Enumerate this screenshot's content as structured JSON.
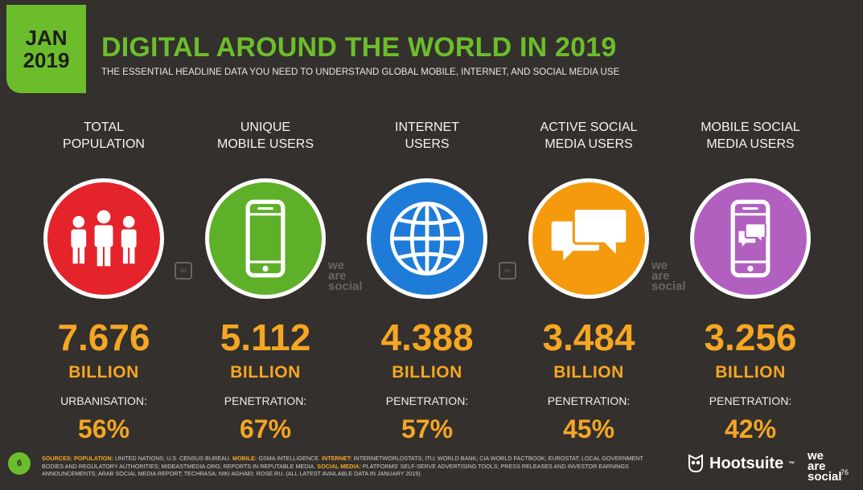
{
  "badge": {
    "month": "JAN",
    "year": "2019"
  },
  "title": "DIGITAL AROUND THE WORLD IN 2019",
  "subtitle": "THE ESSENTIAL HEADLINE DATA YOU NEED TO UNDERSTAND GLOBAL MOBILE, INTERNET, AND SOCIAL MEDIA USE",
  "stats": [
    {
      "label_line1": "TOTAL",
      "label_line2": "POPULATION",
      "icon": "people-icon",
      "color": "#e4242a",
      "value": "7.676",
      "unit": "BILLION",
      "sublabel": "URBANISATION:",
      "subvalue": "56%"
    },
    {
      "label_line1": "UNIQUE",
      "label_line2": "MOBILE USERS",
      "icon": "mobile-phone-icon",
      "color": "#5eb028",
      "value": "5.112",
      "unit": "BILLION",
      "sublabel": "PENETRATION:",
      "subvalue": "67%"
    },
    {
      "label_line1": "INTERNET",
      "label_line2": "USERS",
      "icon": "globe-icon",
      "color": "#1e7bd8",
      "value": "4.388",
      "unit": "BILLION",
      "sublabel": "PENETRATION:",
      "subvalue": "57%"
    },
    {
      "label_line1": "ACTIVE SOCIAL",
      "label_line2": "MEDIA USERS",
      "icon": "chat-bubbles-icon",
      "color": "#f59a0c",
      "value": "3.484",
      "unit": "BILLION",
      "sublabel": "PENETRATION:",
      "subvalue": "45%"
    },
    {
      "label_line1": "MOBILE SOCIAL",
      "label_line2": "MEDIA USERS",
      "icon": "mobile-chat-icon",
      "color": "#b160c0",
      "value": "3.256",
      "unit": "BILLION",
      "sublabel": "PENETRATION:",
      "subvalue": "42%"
    }
  ],
  "accent_colors": {
    "brand_green": "#6cbd2b",
    "value_orange": "#f5a623"
  },
  "watermarks": {
    "we_are_social": [
      "we",
      "are",
      "social"
    ]
  },
  "footer": {
    "page_number": "6",
    "sources_label": "SOURCES:",
    "population_label": "POPULATION:",
    "population_text": "UNITED NATIONS; U.S. CENSUS BUREAU.",
    "mobile_label": "MOBILE:",
    "mobile_text": "GSMA INTELLIGENCE.",
    "internet_label": "INTERNET:",
    "internet_text": "INTERNETWORLDSTATS; ITU; WORLD BANK; CIA WORLD FACTBOOK; EUROSTAT; LOCAL GOVERNMENT BODIES AND REGULATORY AUTHORITIES; MIDEASTMEDIA.ORG; REPORTS IN REPUTABLE MEDIA.",
    "social_label": "SOCIAL MEDIA:",
    "social_text": "PLATFORMS' SELF-SERVE ADVERTISING TOOLS; PRESS RELEASES AND INVESTOR EARNINGS ANNOUNCEMENTS; ARAB SOCIAL MEDIA REPORT; TECHRASA; NIKI AGHAEI; ROSE.RU. (ALL LATEST AVAILABLE DATA IN JANUARY 2019).",
    "hootsuite_label": "Hootsuite",
    "hootsuite_tm": "™",
    "wearesocial_lines": [
      "we",
      "are",
      "social"
    ],
    "right_page_number": "76"
  }
}
